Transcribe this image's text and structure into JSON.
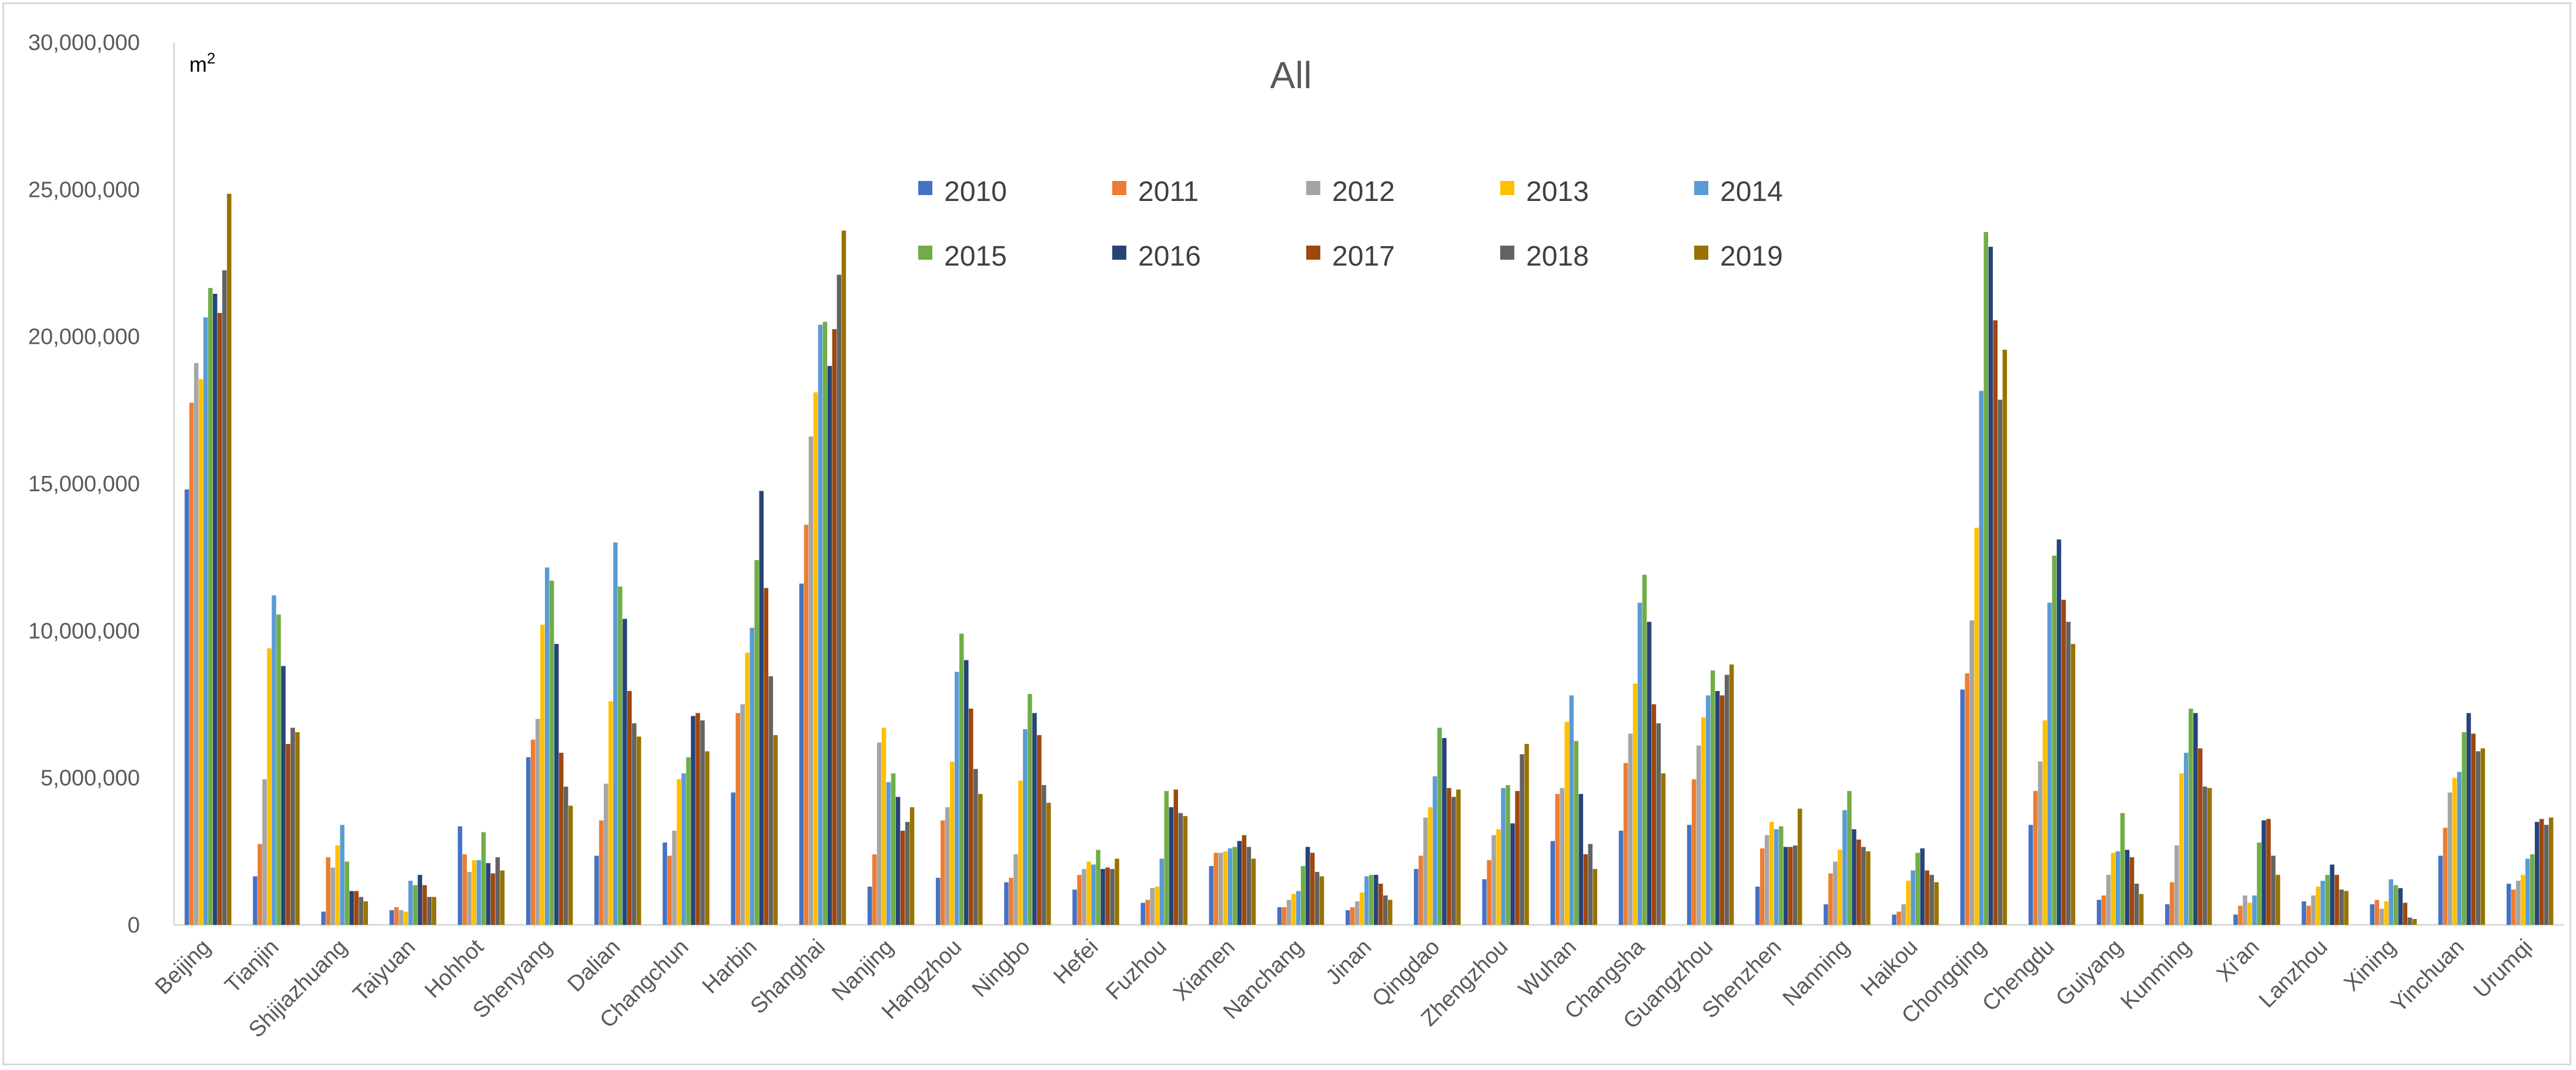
{
  "chart_data": {
    "type": "bar",
    "title": "All",
    "ylabel": "",
    "unit": "m²",
    "xlabel": "",
    "ylim": [
      0,
      30000000
    ],
    "y_ticks": [
      "0",
      "5,000,000",
      "10,000,000",
      "15,000,000",
      "20,000,000",
      "25,000,000",
      "30,000,000"
    ],
    "grid": false,
    "legend_position": "top-center",
    "categories": [
      "Beijing",
      "Tianjin",
      "Shijiazhuang",
      "Taiyuan",
      "Hohhot",
      "Shenyang",
      "Dalian",
      "Changchun",
      "Harbin",
      "Shanghai",
      "Nanjing",
      "Hangzhou",
      "Ningbo",
      "Hefei",
      "Fuzhou",
      "Xiamen",
      "Nanchang",
      "Jinan",
      "Qingdao",
      "Zhengzhou",
      "Wuhan",
      "Changsha",
      "Guangzhou",
      "Shenzhen",
      "Nanning",
      "Haikou",
      "Chongqing",
      "Chengdu",
      "Guiyang",
      "Kunming",
      "Xi'an",
      "Lanzhou",
      "Xining",
      "Yinchuan",
      "Urumqi"
    ],
    "series": [
      {
        "name": "2010",
        "color": "#4472C4",
        "values": [
          14800000,
          1650000,
          450000,
          500000,
          3350000,
          5700000,
          2350000,
          2800000,
          4500000,
          11600000,
          1300000,
          1600000,
          1450000,
          1200000,
          750000,
          2000000,
          600000,
          500000,
          1900000,
          1550000,
          2850000,
          3200000,
          3400000,
          1300000,
          700000,
          350000,
          8000000,
          3400000,
          850000,
          700000,
          350000,
          800000,
          700000,
          2350000,
          1400000
        ]
      },
      {
        "name": "2011",
        "color": "#ED7D31",
        "values": [
          17750000,
          2750000,
          2300000,
          600000,
          2400000,
          6300000,
          3550000,
          2350000,
          7200000,
          13600000,
          2400000,
          3550000,
          1600000,
          1700000,
          850000,
          2450000,
          600000,
          600000,
          2350000,
          2200000,
          4450000,
          5500000,
          4950000,
          2600000,
          1750000,
          450000,
          8550000,
          4550000,
          1000000,
          1450000,
          650000,
          650000,
          850000,
          3300000,
          1200000
        ]
      },
      {
        "name": "2012",
        "color": "#A5A5A5",
        "values": [
          19100000,
          4950000,
          1950000,
          500000,
          1800000,
          7000000,
          4800000,
          3200000,
          7500000,
          16600000,
          6200000,
          4000000,
          2400000,
          1900000,
          1250000,
          2450000,
          850000,
          800000,
          3650000,
          3050000,
          4650000,
          6500000,
          6100000,
          3050000,
          2150000,
          700000,
          10350000,
          5550000,
          1700000,
          2700000,
          1000000,
          1000000,
          550000,
          4500000,
          1500000
        ]
      },
      {
        "name": "2013",
        "color": "#FFC000",
        "values": [
          18550000,
          9400000,
          2700000,
          450000,
          2200000,
          10200000,
          7600000,
          4950000,
          9250000,
          18100000,
          6700000,
          5550000,
          4900000,
          2150000,
          1300000,
          2500000,
          1050000,
          1100000,
          4000000,
          3250000,
          6900000,
          8200000,
          7050000,
          3500000,
          2550000,
          1500000,
          13500000,
          6950000,
          2450000,
          5150000,
          750000,
          1300000,
          800000,
          5000000,
          1700000
        ]
      },
      {
        "name": "2014",
        "color": "#5B9BD5",
        "values": [
          20650000,
          11200000,
          3400000,
          1500000,
          2200000,
          12150000,
          13000000,
          5150000,
          10100000,
          20400000,
          4850000,
          8600000,
          6650000,
          2050000,
          2250000,
          2600000,
          1150000,
          1650000,
          5050000,
          4650000,
          7800000,
          10950000,
          7800000,
          3250000,
          3900000,
          1850000,
          18150000,
          10950000,
          2500000,
          5850000,
          1000000,
          1500000,
          1550000,
          5200000,
          2250000
        ]
      },
      {
        "name": "2015",
        "color": "#70AD47",
        "values": [
          21650000,
          10550000,
          2150000,
          1350000,
          3150000,
          11700000,
          11500000,
          5700000,
          12400000,
          20500000,
          5150000,
          9900000,
          7850000,
          2550000,
          4550000,
          2650000,
          2000000,
          1700000,
          6700000,
          4750000,
          6250000,
          11900000,
          8650000,
          3350000,
          4550000,
          2450000,
          23550000,
          12550000,
          3800000,
          7350000,
          2800000,
          1700000,
          1350000,
          6550000,
          2400000
        ]
      },
      {
        "name": "2016",
        "color": "#264478",
        "values": [
          21450000,
          8800000,
          1150000,
          1700000,
          2100000,
          9550000,
          10400000,
          7100000,
          14750000,
          19000000,
          4350000,
          9000000,
          7200000,
          1900000,
          4000000,
          2850000,
          2650000,
          1700000,
          6350000,
          3450000,
          4450000,
          10300000,
          7950000,
          2650000,
          3250000,
          2600000,
          23050000,
          13100000,
          2550000,
          7200000,
          3550000,
          2050000,
          1250000,
          7200000,
          3500000
        ]
      },
      {
        "name": "2017",
        "color": "#9E480E",
        "values": [
          20800000,
          6150000,
          1150000,
          1350000,
          1750000,
          5850000,
          7950000,
          7200000,
          11450000,
          20250000,
          3200000,
          7350000,
          6450000,
          1950000,
          4600000,
          3050000,
          2450000,
          1400000,
          4650000,
          4550000,
          2400000,
          7500000,
          7800000,
          2650000,
          2900000,
          1850000,
          20550000,
          11050000,
          2300000,
          6000000,
          3600000,
          1700000,
          750000,
          6500000,
          3600000
        ]
      },
      {
        "name": "2018",
        "color": "#636363",
        "values": [
          22250000,
          6700000,
          950000,
          950000,
          2300000,
          4700000,
          6850000,
          6950000,
          8450000,
          22100000,
          3500000,
          5300000,
          4750000,
          1900000,
          3800000,
          2650000,
          1800000,
          1000000,
          4350000,
          5800000,
          2750000,
          6850000,
          8500000,
          2700000,
          2650000,
          1700000,
          17850000,
          10300000,
          1400000,
          4700000,
          2350000,
          1200000,
          250000,
          5900000,
          3400000
        ]
      },
      {
        "name": "2019",
        "color": "#997300",
        "values": [
          24850000,
          6550000,
          800000,
          950000,
          1850000,
          4050000,
          6400000,
          5900000,
          6450000,
          23600000,
          4000000,
          4450000,
          4150000,
          2250000,
          3700000,
          2250000,
          1650000,
          850000,
          4600000,
          6150000,
          1900000,
          5150000,
          8850000,
          3950000,
          2500000,
          1450000,
          19550000,
          9550000,
          1050000,
          4650000,
          1700000,
          1150000,
          200000,
          6000000,
          3650000
        ]
      }
    ]
  }
}
